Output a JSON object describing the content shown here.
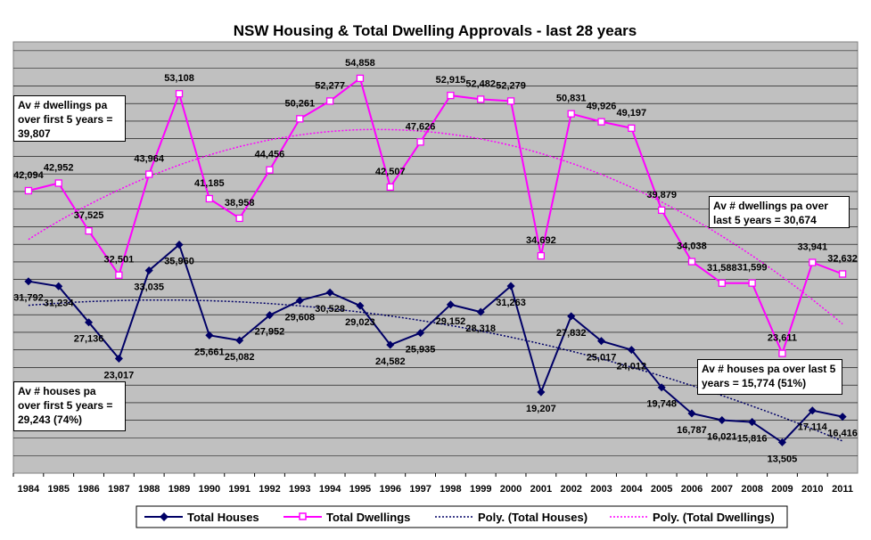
{
  "chart_data": {
    "type": "line",
    "title": "NSW Housing & Total Dwelling Approvals - last 28 years",
    "xlabel": "",
    "ylabel": "",
    "ylim": [
      10000,
      59000
    ],
    "grid": true,
    "categories": [
      "1984",
      "1985",
      "1986",
      "1987",
      "1988",
      "1989",
      "1990",
      "1991",
      "1992",
      "1993",
      "1994",
      "1995",
      "1996",
      "1997",
      "1998",
      "1999",
      "2000",
      "2001",
      "2002",
      "2003",
      "2004",
      "2005",
      "2006",
      "2007",
      "2008",
      "2009",
      "2010",
      "2011"
    ],
    "series": [
      {
        "name": "Total Houses",
        "color": "#000066",
        "marker": "diamond",
        "values": [
          31792,
          31234,
          27136,
          23017,
          33035,
          35960,
          25661,
          25082,
          27952,
          29608,
          30528,
          29023,
          24582,
          25935,
          29152,
          28318,
          31263,
          19207,
          27832,
          25017,
          24012,
          19748,
          16787,
          16021,
          15816,
          13505,
          17114,
          16416
        ],
        "labels": [
          "31,792",
          "31,234",
          "27,136",
          "23,017",
          "33,035",
          "35,960",
          "25,661",
          "25,082",
          "27,952",
          "29,608",
          "30,528",
          "29,023",
          "24,582",
          "25,935",
          "29,152",
          "28,318",
          "31,263",
          "19,207",
          "27,832",
          "25,017",
          "24,012",
          "19,748",
          "16,787",
          "16,021",
          "15,816",
          "13,505",
          "17,114",
          "16,416"
        ]
      },
      {
        "name": "Total Dwellings",
        "color": "#ff00ff",
        "marker": "square",
        "values": [
          42094,
          42952,
          37525,
          32501,
          43964,
          53108,
          41185,
          38958,
          44456,
          50261,
          52277,
          54858,
          42507,
          47626,
          52915,
          52482,
          52279,
          34692,
          50831,
          49926,
          49197,
          39879,
          34038,
          31588,
          31599,
          23611,
          33941,
          32632
        ],
        "labels": [
          "42,094",
          "42,952",
          "37,525",
          "32,501",
          "43,964",
          "53,108",
          "41,185",
          "38,958",
          "44,456",
          "50,261",
          "52,277",
          "54,858",
          "42,507",
          "47,626",
          "52,915",
          "52,482",
          "52,279",
          "34,692",
          "50,831",
          "49,926",
          "49,197",
          "39,879",
          "34,038",
          "31,588",
          "31,599",
          "23,611",
          "33,941",
          "32,632"
        ]
      }
    ],
    "trendlines": [
      {
        "name": "Poly. (Total Houses)",
        "type": "polynomial",
        "of": "Total Houses",
        "color": "#000066"
      },
      {
        "name": "Poly. (Total Dwellings)",
        "type": "polynomial",
        "of": "Total Dwellings",
        "color": "#ff00ff"
      }
    ],
    "legend": {
      "placement": "bottom",
      "entries": [
        "Total Houses",
        "Total Dwellings",
        "Poly. (Total Houses)",
        "Poly. (Total Dwellings)"
      ]
    },
    "annotations": {
      "dwellings_first5": "Av # dwellings pa over first 5 years = 39,807",
      "dwellings_last5": "Av # dwellings pa over last 5 years = 30,674",
      "houses_first5": "Av # houses pa over first 5 years = 29,243 (74%)",
      "houses_last5": "Av # houses pa over last 5 years = 15,774 (51%)"
    }
  }
}
